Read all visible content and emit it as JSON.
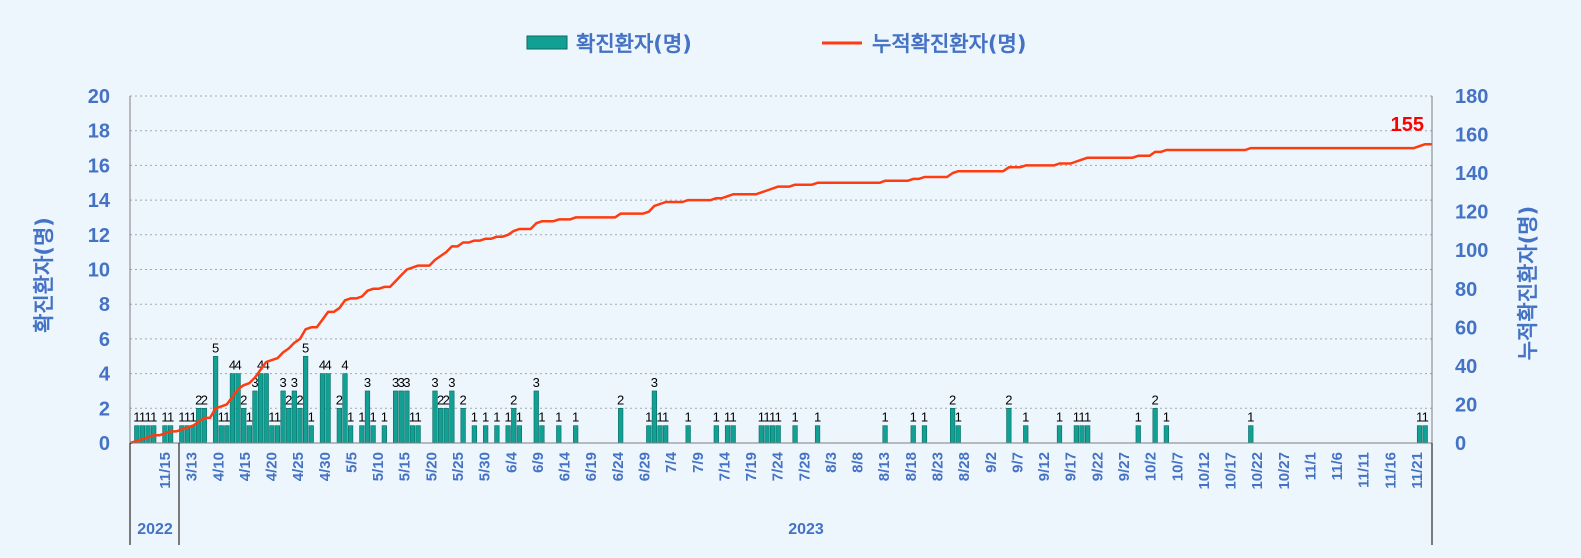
{
  "chart_data": {
    "type": "bar+line",
    "legend": {
      "bar": "확진환자(명)",
      "line": "누적확진환자(명)",
      "position": "top"
    },
    "y_left_label": "확진환자(명)",
    "y_right_label": "누적확진환자(명)",
    "y_left_range": [
      0,
      20
    ],
    "y_left_ticks": [
      "0",
      "2",
      "4",
      "6",
      "8",
      "10",
      "12",
      "14",
      "16",
      "18",
      "20"
    ],
    "y_right_range": [
      0,
      180
    ],
    "y_right_ticks": [
      "0",
      "20",
      "40",
      "60",
      "80",
      "100",
      "120",
      "140",
      "160",
      "180"
    ],
    "grid": "horizontal dotted",
    "x_ticks": [
      "11/15",
      "3/13",
      "4/10",
      "4/15",
      "4/20",
      "4/25",
      "4/30",
      "5/5",
      "5/10",
      "5/15",
      "5/20",
      "5/25",
      "5/30",
      "6/4",
      "6/9",
      "6/14",
      "6/19",
      "6/24",
      "6/29",
      "7/4",
      "7/9",
      "7/14",
      "7/19",
      "7/24",
      "7/29",
      "8/3",
      "8/8",
      "8/13",
      "8/18",
      "8/23",
      "8/28",
      "9/2",
      "9/7",
      "9/12",
      "9/17",
      "9/22",
      "9/27",
      "10/2",
      "10/7",
      "10/12",
      "10/17",
      "10/22",
      "10/27",
      "11/1",
      "11/6",
      "11/11",
      "11/16",
      "11/21"
    ],
    "years": [
      "2022",
      "2023"
    ],
    "bars": [
      1,
      1,
      1,
      1,
      0,
      1,
      1,
      0,
      1,
      1,
      1,
      2,
      2,
      0,
      5,
      1,
      1,
      4,
      4,
      2,
      1,
      3,
      4,
      4,
      1,
      1,
      3,
      2,
      3,
      2,
      5,
      1,
      0,
      4,
      4,
      0,
      2,
      4,
      1,
      0,
      1,
      3,
      1,
      0,
      1,
      0,
      3,
      3,
      3,
      1,
      1,
      0,
      0,
      3,
      2,
      2,
      3,
      0,
      2,
      0,
      1,
      0,
      1,
      0,
      1,
      0,
      1,
      2,
      1,
      0,
      0,
      3,
      1,
      0,
      0,
      1,
      0,
      0,
      1,
      0,
      0,
      0,
      0,
      0,
      0,
      0,
      2,
      0,
      0,
      0,
      0,
      1,
      3,
      1,
      1,
      0,
      0,
      0,
      1,
      0,
      0,
      0,
      0,
      1,
      0,
      1,
      1,
      0,
      0,
      0,
      0,
      1,
      1,
      1,
      1,
      0,
      0,
      1,
      0,
      0,
      0,
      1,
      0,
      0,
      0,
      0,
      0,
      0,
      0,
      0,
      0,
      0,
      0,
      1,
      0,
      0,
      0,
      0,
      1,
      0,
      1,
      0,
      0,
      0,
      0,
      2,
      1,
      0,
      0,
      0,
      0,
      0,
      0,
      0,
      0,
      2,
      0,
      0,
      1,
      0,
      0,
      0,
      0,
      0,
      1,
      0,
      0,
      1,
      1,
      1,
      0,
      0,
      0,
      0,
      0,
      0,
      0,
      0,
      1,
      0,
      0,
      2,
      0,
      1,
      0,
      0,
      0,
      0,
      0,
      0,
      0,
      0,
      0,
      0,
      0,
      0,
      0,
      0,
      1,
      0,
      0,
      0,
      0,
      0,
      0,
      0,
      0,
      0,
      0,
      0,
      0,
      0,
      0,
      0,
      0,
      0,
      0,
      0,
      0,
      0,
      0,
      0,
      0,
      0,
      0,
      0,
      0,
      0,
      1,
      1
    ],
    "cumulative_end": 155
  }
}
